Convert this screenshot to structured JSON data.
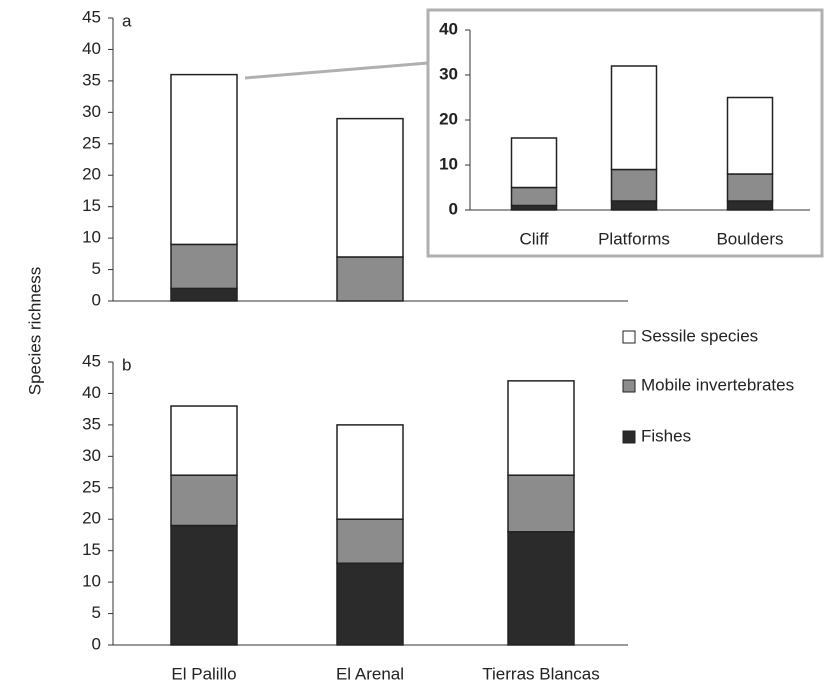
{
  "chart_data": [
    {
      "type": "bar",
      "stacked": true,
      "panel_label": "a",
      "ylabel": "Species richness",
      "ylim": [
        0,
        45
      ],
      "yticks": [
        0,
        5,
        10,
        15,
        20,
        25,
        30,
        35,
        40,
        45
      ],
      "series": [
        {
          "color": "#2b2b2b",
          "values": [
            2,
            0,
            null
          ]
        },
        {
          "color": "#8c8c8c",
          "values": [
            7,
            7,
            null
          ]
        },
        {
          "color": "#ffffff",
          "values": [
            27,
            22,
            null
          ]
        }
      ]
    },
    {
      "type": "bar",
      "stacked": true,
      "inset": true,
      "categories": [
        "Cliff",
        "Platforms",
        "Boulders"
      ],
      "ylim": [
        0,
        40
      ],
      "yticks": [
        0,
        10,
        20,
        30,
        40
      ],
      "series": [
        {
          "color": "#2b2b2b",
          "values": [
            1,
            2,
            2
          ]
        },
        {
          "color": "#8c8c8c",
          "values": [
            4,
            7,
            6
          ]
        },
        {
          "color": "#ffffff",
          "values": [
            11,
            23,
            17
          ]
        }
      ]
    },
    {
      "type": "bar",
      "stacked": true,
      "panel_label": "b",
      "categories": [
        "El Palillo",
        "El Arenal",
        "Tierras Blancas"
      ],
      "ylim": [
        0,
        45
      ],
      "yticks": [
        0,
        5,
        10,
        15,
        20,
        25,
        30,
        35,
        40,
        45
      ],
      "series": [
        {
          "name": "Fishes",
          "color": "#2b2b2b",
          "values": [
            19,
            13,
            18
          ]
        },
        {
          "name": "Mobile invertebrates",
          "color": "#8c8c8c",
          "values": [
            8,
            7,
            9
          ]
        },
        {
          "name": "Sessile species",
          "color": "#ffffff",
          "values": [
            11,
            15,
            15
          ]
        }
      ]
    }
  ]
}
